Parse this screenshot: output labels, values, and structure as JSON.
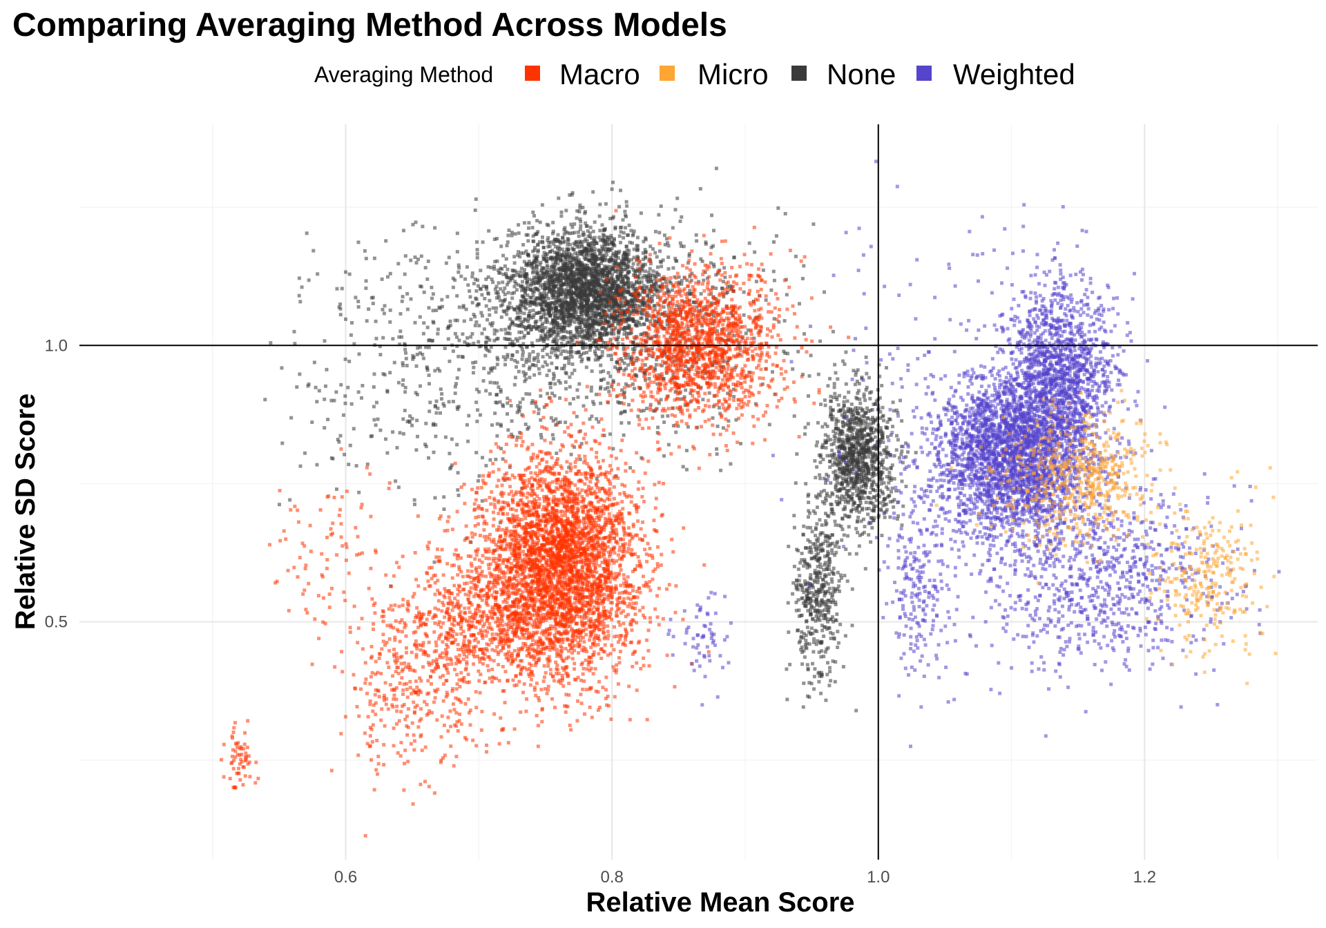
{
  "chart_data": {
    "type": "scatter",
    "title": "Comparing Averaging Method Across Models",
    "xlabel": "Relative Mean Score",
    "ylabel": "Relative SD Score",
    "xlim": [
      0.4,
      1.33
    ],
    "ylim": [
      0.07,
      1.4
    ],
    "x_ticks": [
      0.6,
      0.8,
      1.0,
      1.2
    ],
    "x_tick_labels": [
      "0.6",
      "0.8",
      "1.0",
      "1.2"
    ],
    "y_ticks": [
      0.5,
      1.0
    ],
    "y_tick_labels": [
      "0.5",
      "1.0"
    ],
    "reference_lines": {
      "x": 1.0,
      "y": 1.0
    },
    "grid": true,
    "legend": {
      "title": "Averaging Method",
      "position": "top",
      "items": [
        "Macro",
        "Micro",
        "None",
        "Weighted"
      ]
    },
    "series": [
      {
        "name": "Macro",
        "color": "#FF3300",
        "clusters": [
          {
            "cx": 0.76,
            "cy": 0.6,
            "sx": 0.03,
            "sy": 0.1,
            "n": 3600
          },
          {
            "cx": 0.865,
            "cy": 1.0,
            "sx": 0.03,
            "sy": 0.07,
            "n": 1500
          },
          {
            "cx": 0.7,
            "cy": 0.5,
            "sx": 0.025,
            "sy": 0.07,
            "n": 550
          },
          {
            "cx": 0.65,
            "cy": 0.4,
            "sx": 0.025,
            "sy": 0.09,
            "n": 400
          },
          {
            "cx": 0.52,
            "cy": 0.25,
            "sx": 0.006,
            "sy": 0.03,
            "n": 60
          },
          {
            "cx": 0.585,
            "cy": 0.62,
            "sx": 0.025,
            "sy": 0.08,
            "n": 80
          }
        ]
      },
      {
        "name": "Micro",
        "color": "#FFA533",
        "clusters": [
          {
            "cx": 1.15,
            "cy": 0.76,
            "sx": 0.03,
            "sy": 0.06,
            "n": 550
          },
          {
            "cx": 1.25,
            "cy": 0.58,
            "sx": 0.02,
            "sy": 0.07,
            "n": 260
          }
        ]
      },
      {
        "name": "None",
        "color": "#3A3A3A",
        "clusters": [
          {
            "cx": 0.78,
            "cy": 1.1,
            "sx": 0.03,
            "sy": 0.055,
            "n": 2600
          },
          {
            "cx": 0.79,
            "cy": 1.02,
            "sx": 0.07,
            "sy": 0.1,
            "n": 1000
          },
          {
            "cx": 0.985,
            "cy": 0.8,
            "sx": 0.014,
            "sy": 0.06,
            "n": 1000
          },
          {
            "cx": 0.955,
            "cy": 0.55,
            "sx": 0.009,
            "sy": 0.08,
            "n": 450
          },
          {
            "cx": 0.65,
            "cy": 0.95,
            "sx": 0.05,
            "sy": 0.13,
            "n": 300
          }
        ]
      },
      {
        "name": "Weighted",
        "color": "#5544CC",
        "clusters": [
          {
            "cx": 1.1,
            "cy": 0.8,
            "sx": 0.03,
            "sy": 0.07,
            "n": 2700
          },
          {
            "cx": 1.135,
            "cy": 0.95,
            "sx": 0.02,
            "sy": 0.08,
            "n": 1300
          },
          {
            "cx": 1.17,
            "cy": 0.58,
            "sx": 0.045,
            "sy": 0.08,
            "n": 800
          },
          {
            "cx": 1.03,
            "cy": 0.55,
            "sx": 0.012,
            "sy": 0.08,
            "n": 200
          },
          {
            "cx": 0.865,
            "cy": 0.47,
            "sx": 0.01,
            "sy": 0.04,
            "n": 60
          },
          {
            "cx": 1.06,
            "cy": 0.85,
            "sx": 0.06,
            "sy": 0.2,
            "n": 200
          }
        ]
      }
    ]
  }
}
